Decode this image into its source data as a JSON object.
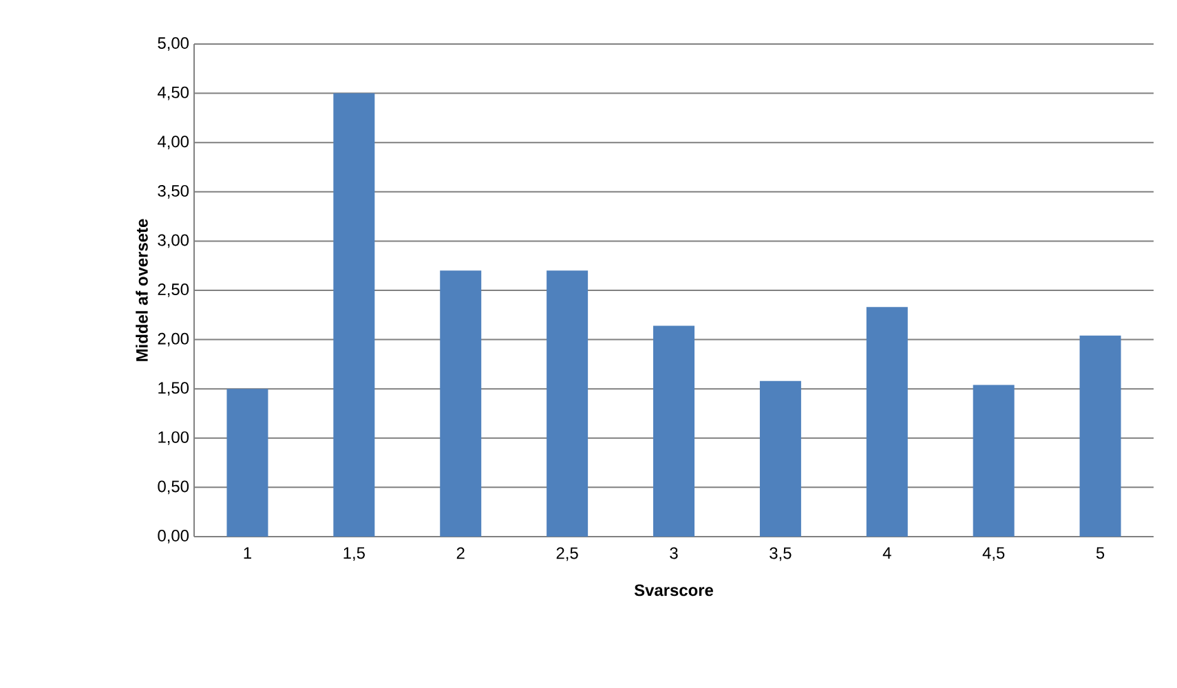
{
  "chart_data": {
    "type": "bar",
    "xlabel": "Svarscore",
    "ylabel": "Middel af oversete",
    "categories": [
      "1",
      "1,5",
      "2",
      "2,5",
      "3",
      "3,5",
      "4",
      "4,5",
      "5"
    ],
    "values": [
      1.5,
      4.5,
      2.7,
      2.7,
      2.14,
      1.58,
      2.33,
      1.54,
      2.04
    ],
    "color": "#4f81bd",
    "ylim": [
      0,
      5
    ],
    "yticks": [
      {
        "value": 0,
        "label": "0,00"
      },
      {
        "value": 0.5,
        "label": "0,50"
      },
      {
        "value": 1,
        "label": "1,00"
      },
      {
        "value": 1.5,
        "label": "1,50"
      },
      {
        "value": 2,
        "label": "2,00"
      },
      {
        "value": 2.5,
        "label": "2,50"
      },
      {
        "value": 3,
        "label": "3,00"
      },
      {
        "value": 3.5,
        "label": "3,50"
      },
      {
        "value": 4,
        "label": "4,00"
      },
      {
        "value": 4.5,
        "label": "4,50"
      },
      {
        "value": 5,
        "label": "5,00"
      }
    ],
    "grid": "y"
  }
}
